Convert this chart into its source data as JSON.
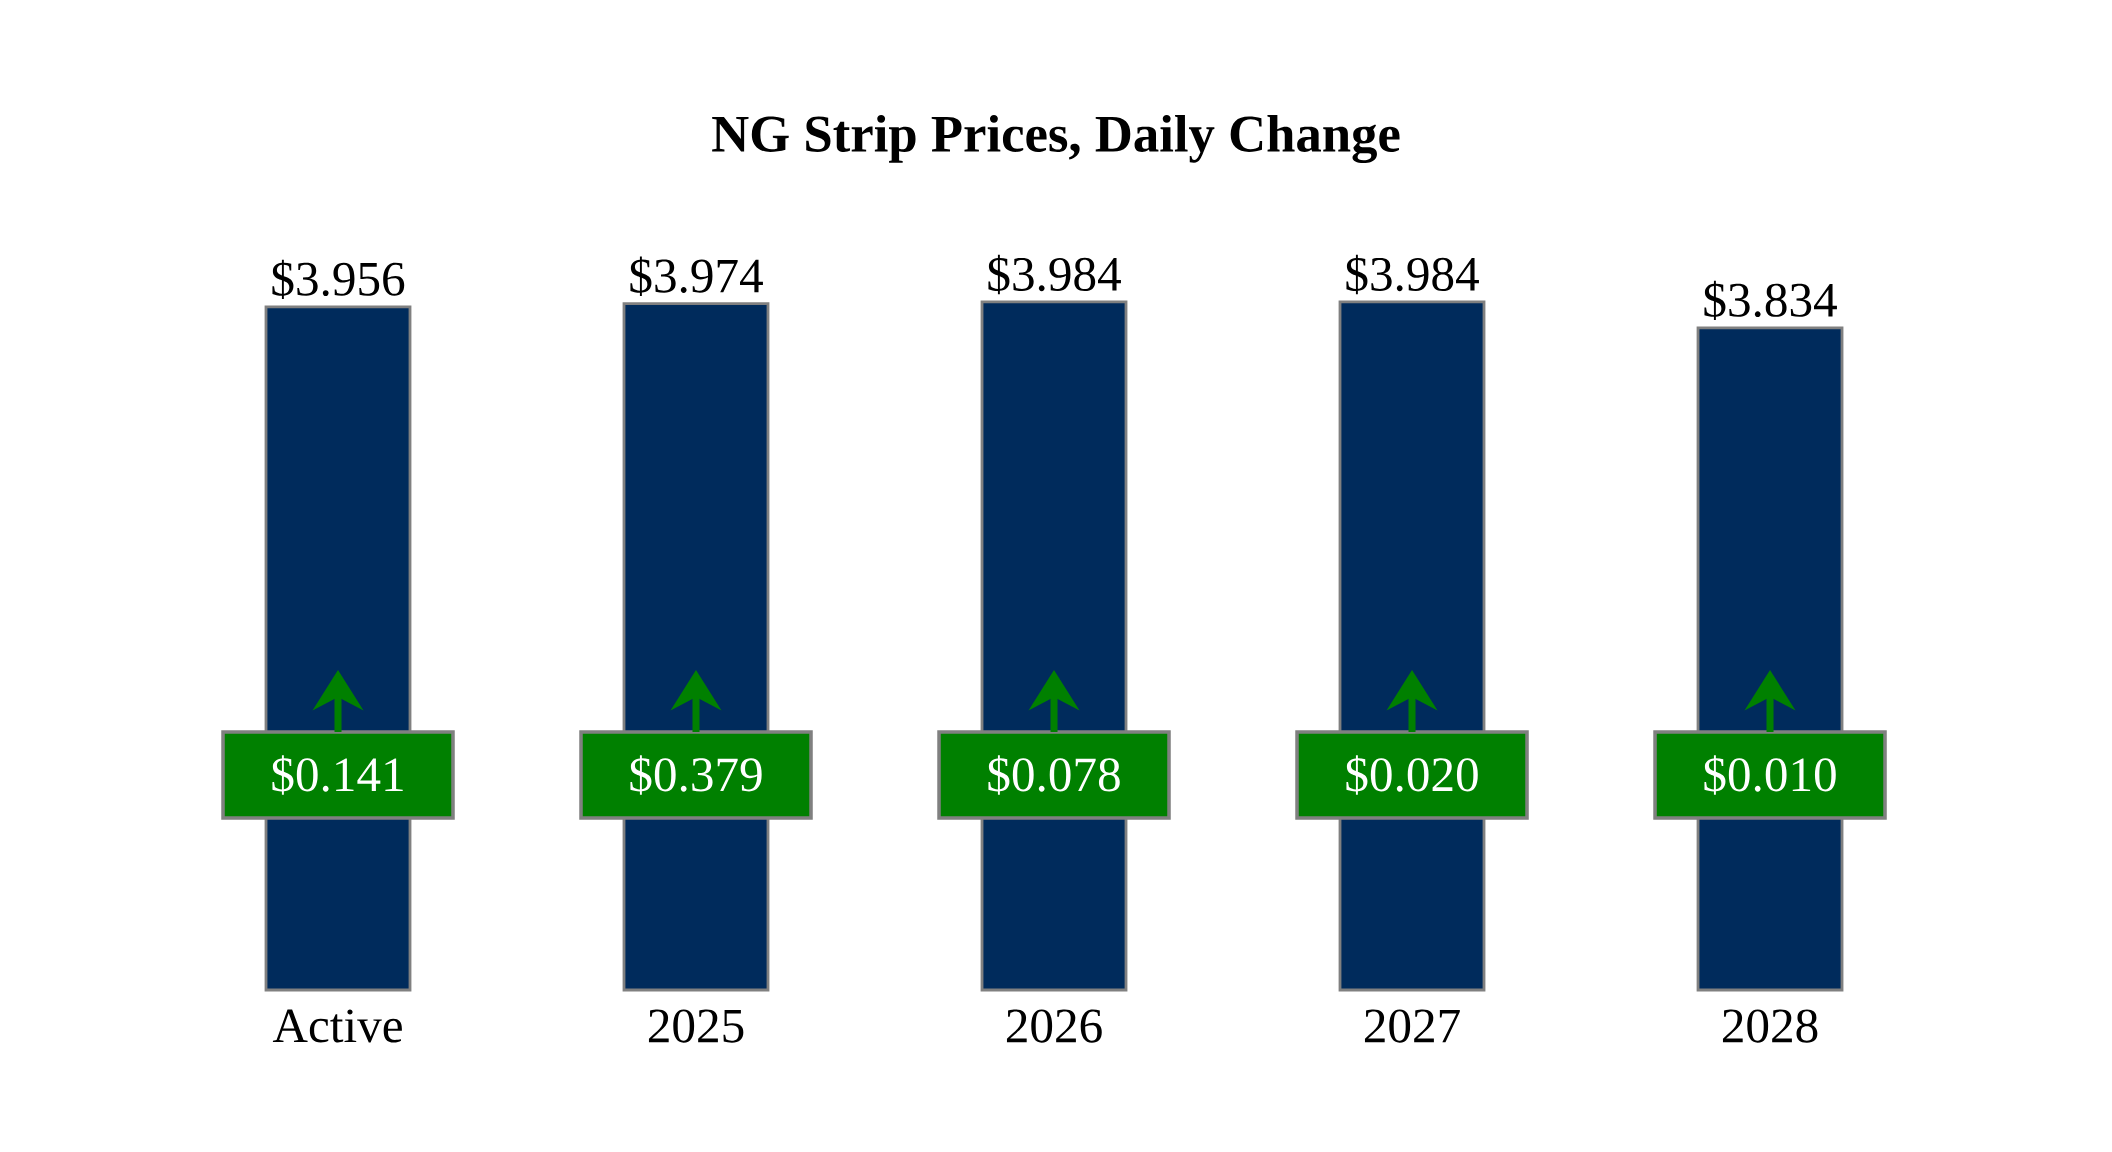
{
  "chart_data": {
    "type": "bar",
    "title": "NG Strip Prices, Daily Change",
    "categories": [
      "Active",
      "2025",
      "2026",
      "2027",
      "2028"
    ],
    "values": [
      3.956,
      3.974,
      3.984,
      3.984,
      3.834
    ],
    "value_labels": [
      "$3.956",
      "$3.974",
      "$3.984",
      "$3.984",
      "$3.834"
    ],
    "color": "#002b5c",
    "annotations": [
      {
        "text": "$0.141",
        "x": "Active"
      },
      {
        "text": "$0.379",
        "x": "2025"
      },
      {
        "text": "$0.078",
        "x": "2026"
      },
      {
        "text": "$0.020",
        "x": "2027"
      },
      {
        "text": "$0.010",
        "x": "2028"
      }
    ]
  }
}
